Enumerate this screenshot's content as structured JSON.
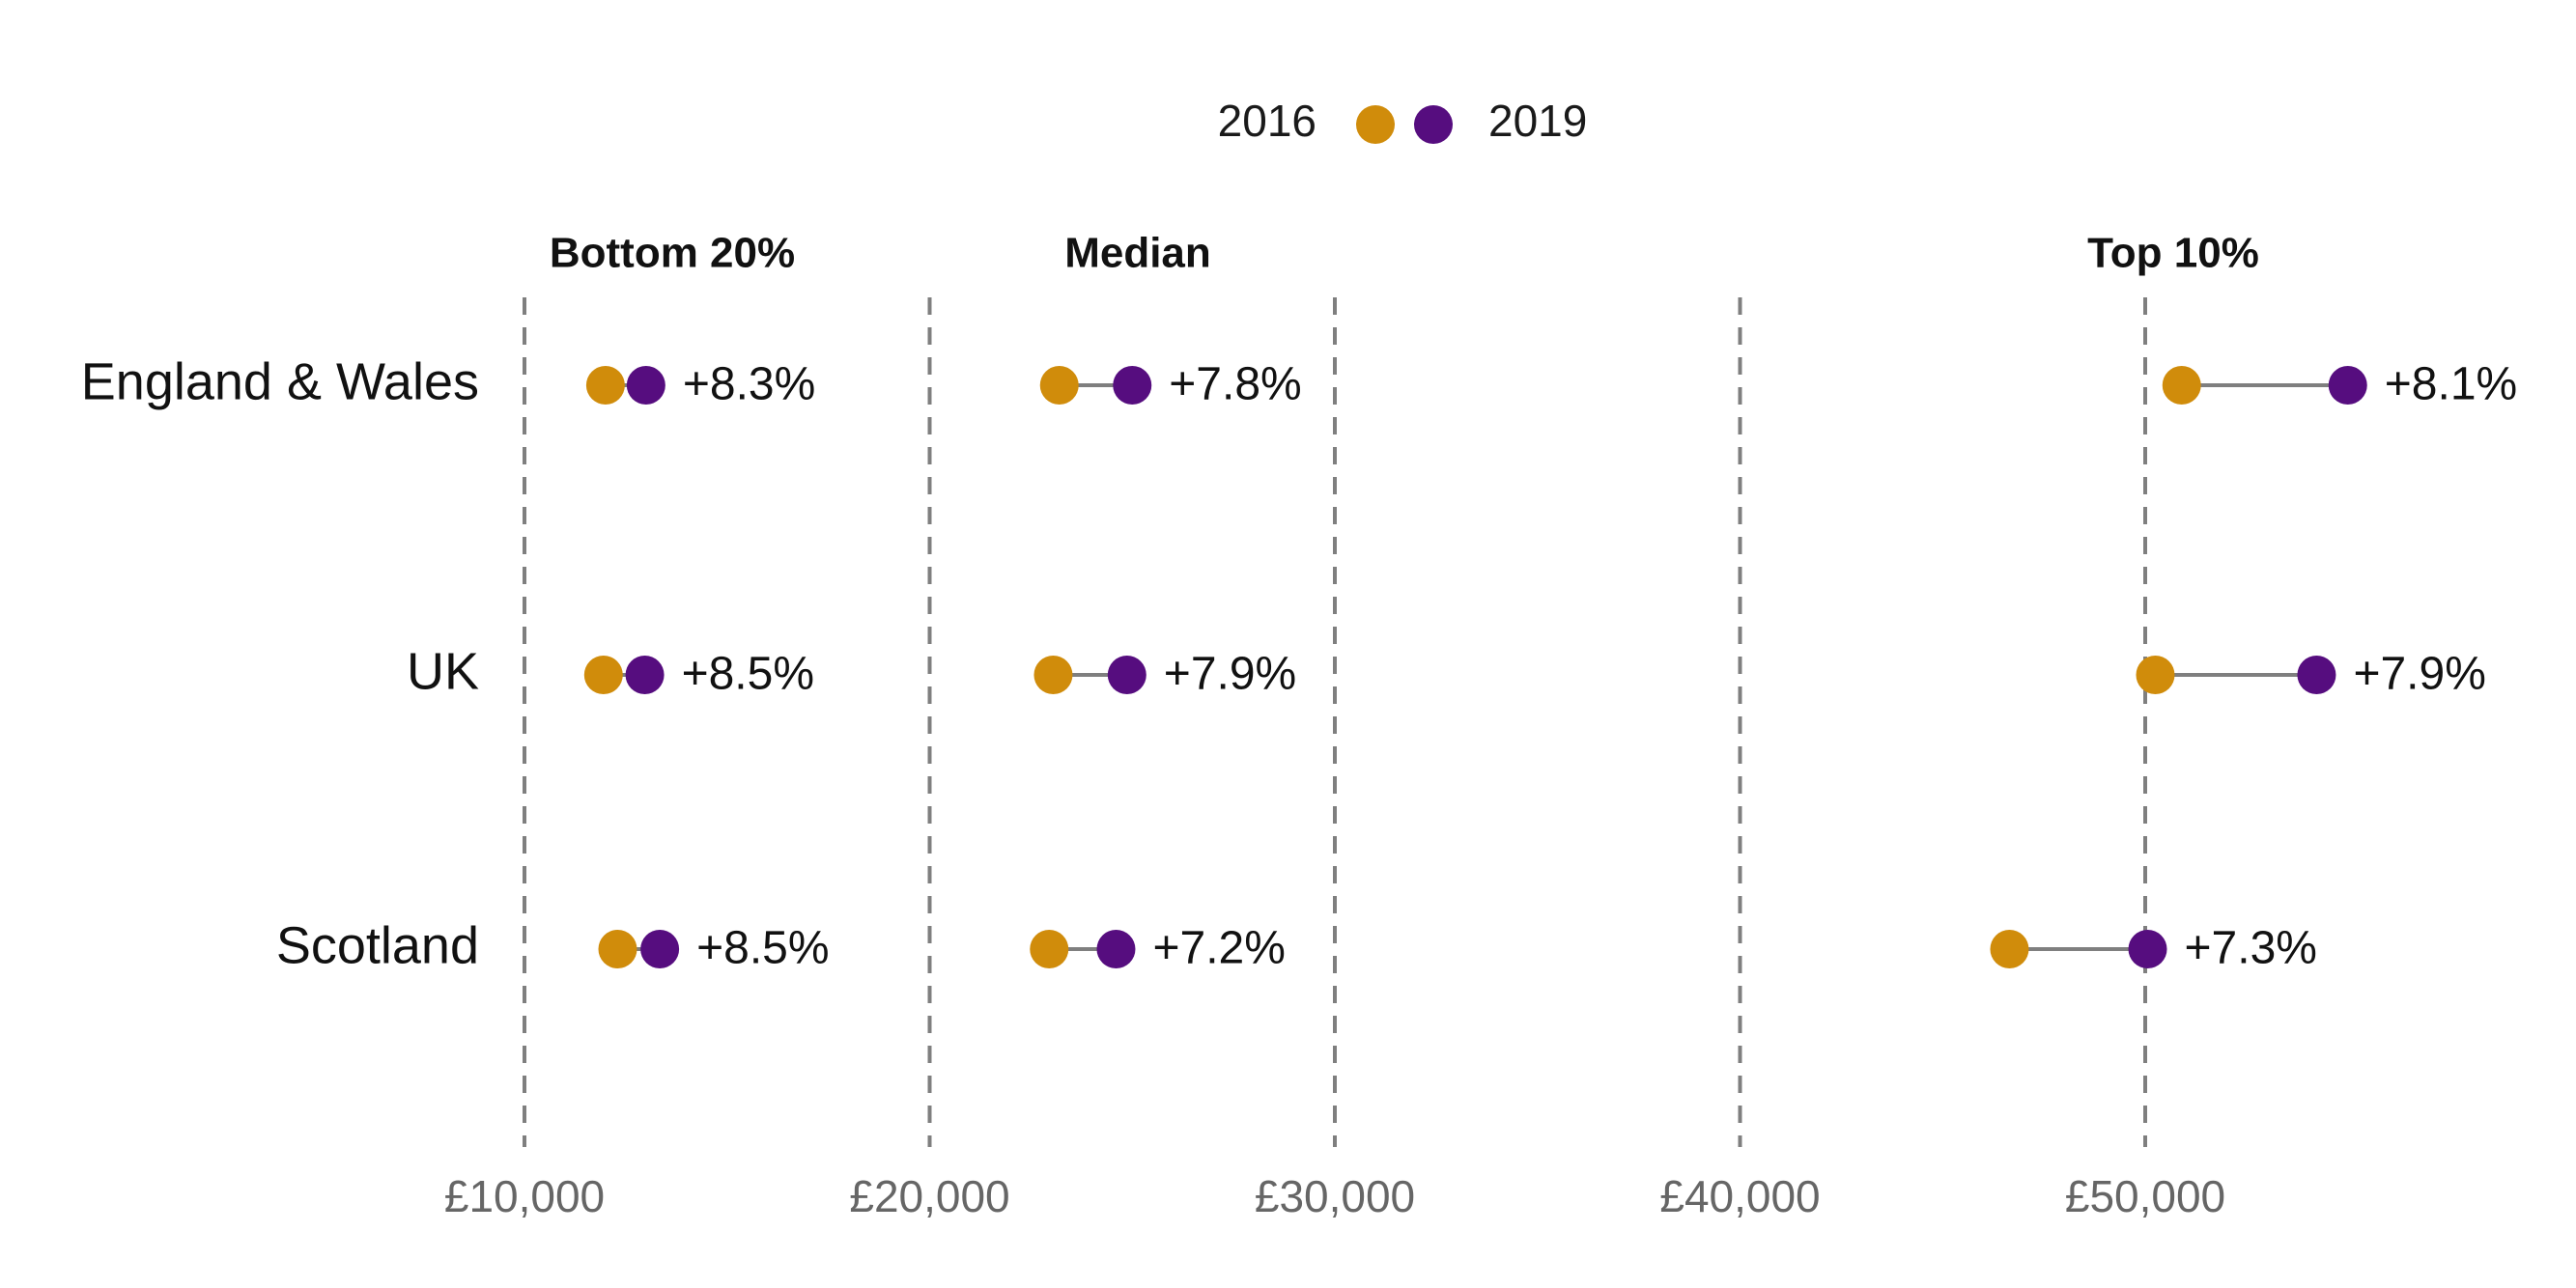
{
  "chart_data": {
    "type": "scatter",
    "subtype": "dumbbell",
    "title": "",
    "xlabel": "",
    "ylabel": "",
    "xlim": [
      10000,
      60000
    ],
    "x_ticks": [
      {
        "value": 10000,
        "label": "£10,000"
      },
      {
        "value": 20000,
        "label": "£20,000"
      },
      {
        "value": 30000,
        "label": "£30,000"
      },
      {
        "value": 40000,
        "label": "£40,000"
      },
      {
        "value": 50000,
        "label": "£50,000"
      }
    ],
    "grid": "vertical dashed",
    "legend": {
      "placement": "top-center",
      "entries": [
        {
          "name": "2016",
          "color": "#D08C0B"
        },
        {
          "name": "2019",
          "color": "#560D7F"
        }
      ]
    },
    "categories": [
      "England & Wales",
      "UK",
      "Scotland"
    ],
    "groups": [
      {
        "name": "Bottom 20%",
        "values": [
          {
            "category": "England & Wales",
            "y2016": 12000,
            "y2019": 13000,
            "label": "+8.3%"
          },
          {
            "category": "UK",
            "y2016": 11950,
            "y2019": 12970,
            "label": "+8.5%"
          },
          {
            "category": "Scotland",
            "y2016": 12300,
            "y2019": 13340,
            "label": "+8.5%"
          }
        ]
      },
      {
        "name": "Median",
        "values": [
          {
            "category": "England & Wales",
            "y2016": 23200,
            "y2019": 25000,
            "label": "+7.8%"
          },
          {
            "category": "UK",
            "y2016": 23050,
            "y2019": 24870,
            "label": "+7.9%"
          },
          {
            "category": "Scotland",
            "y2016": 22950,
            "y2019": 24600,
            "label": "+7.2%"
          }
        ]
      },
      {
        "name": "Top 10%",
        "values": [
          {
            "category": "England & Wales",
            "y2016": 50900,
            "y2019": 55000,
            "label": "+8.1%"
          },
          {
            "category": "UK",
            "y2016": 50250,
            "y2019": 54230,
            "label": "+7.9%"
          },
          {
            "category": "Scotland",
            "y2016": 46650,
            "y2019": 50060,
            "label": "+7.3%"
          }
        ]
      }
    ]
  }
}
